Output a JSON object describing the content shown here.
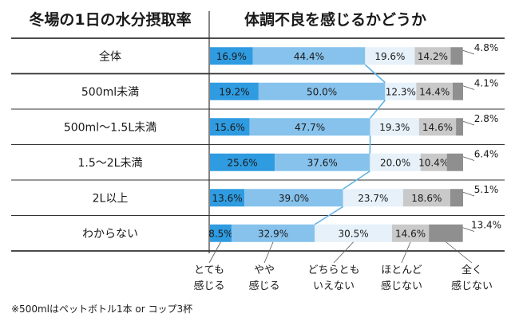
{
  "chart_data": {
    "type": "bar",
    "stacked": true,
    "orientation": "horizontal",
    "normalized_percent": true,
    "left_header": "冬場の1日の水分摂取率",
    "title": "体調不良を感じるかどうか",
    "categories": [
      "全体",
      "500ml未満",
      "500ml〜1.5L未満",
      "1.5〜2L未満",
      "2L以上",
      "わからない"
    ],
    "series": [
      {
        "name": "とても感じる",
        "legend_lines": [
          "とても",
          "感じる"
        ],
        "color": "#2f9be0",
        "values": [
          16.9,
          19.2,
          15.6,
          25.6,
          13.6,
          8.5
        ]
      },
      {
        "name": "やや感じる",
        "legend_lines": [
          "やや",
          "感じる"
        ],
        "color": "#86c2ec",
        "values": [
          44.4,
          50.0,
          47.7,
          37.6,
          39.0,
          32.9
        ]
      },
      {
        "name": "どちらともいえない",
        "legend_lines": [
          "どちらとも",
          "いえない"
        ],
        "color": "#e6f1fa",
        "values": [
          19.6,
          12.3,
          19.3,
          20.0,
          23.7,
          30.5
        ]
      },
      {
        "name": "ほとんど感じない",
        "legend_lines": [
          "ほとんど",
          "感じない"
        ],
        "color": "#c9c9c9",
        "values": [
          14.2,
          14.4,
          14.6,
          10.4,
          18.6,
          14.6
        ]
      },
      {
        "name": "全く感じない",
        "legend_lines": [
          "全く",
          "感じない"
        ],
        "color": "#8f8f8f",
        "values": [
          4.8,
          4.1,
          2.8,
          6.4,
          5.1,
          13.4
        ]
      }
    ],
    "value_suffix": "%",
    "highlight_line": "connects the boundary between やや感じる and どちらともいえない across rows",
    "highlight_color": "#5fb3e6",
    "legend_position": "bottom"
  },
  "footnote": "※500mlはペットボトル1本 or コップ3杯"
}
